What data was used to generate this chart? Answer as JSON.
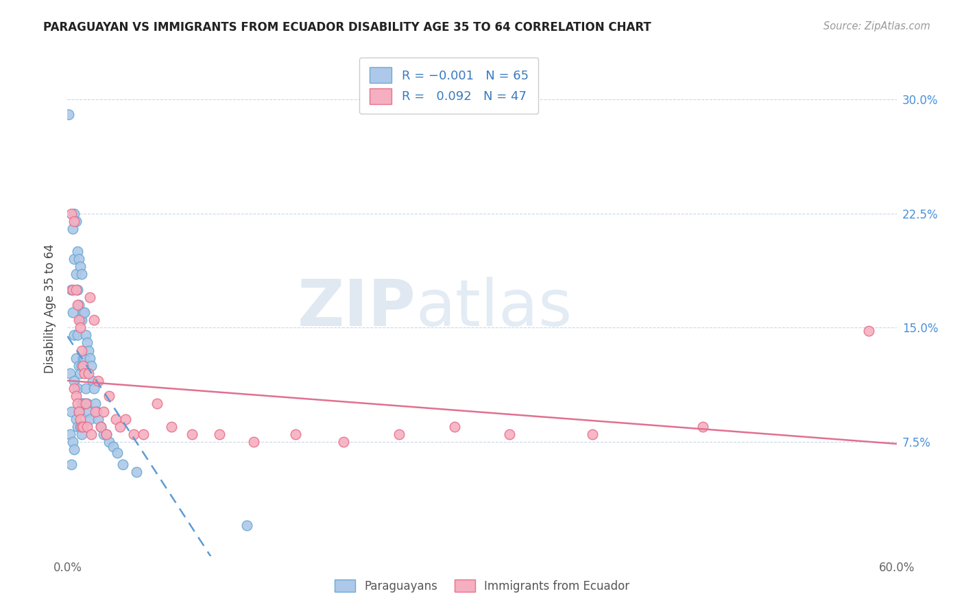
{
  "title": "PARAGUAYAN VS IMMIGRANTS FROM ECUADOR DISABILITY AGE 35 TO 64 CORRELATION CHART",
  "source": "Source: ZipAtlas.com",
  "ylabel": "Disability Age 35 to 64",
  "yticks": [
    "7.5%",
    "15.0%",
    "22.5%",
    "30.0%"
  ],
  "ytick_vals": [
    0.075,
    0.15,
    0.225,
    0.3
  ],
  "blue_r": "-0.001",
  "blue_n": "65",
  "pink_r": "0.092",
  "pink_n": "47",
  "blue_color": "#adc8e8",
  "pink_color": "#f5afc0",
  "blue_edge_color": "#6aaad4",
  "pink_edge_color": "#e8708a",
  "blue_line_color": "#5b9bd5",
  "pink_line_color": "#e07090",
  "legend_label_blue": "Paraguayans",
  "legend_label_pink": "Immigrants from Ecuador",
  "watermark_zip": "ZIP",
  "watermark_atlas": "atlas",
  "blue_x": [
    0.001,
    0.002,
    0.002,
    0.003,
    0.003,
    0.003,
    0.004,
    0.004,
    0.004,
    0.005,
    0.005,
    0.005,
    0.005,
    0.005,
    0.006,
    0.006,
    0.006,
    0.006,
    0.007,
    0.007,
    0.007,
    0.007,
    0.007,
    0.008,
    0.008,
    0.008,
    0.008,
    0.009,
    0.009,
    0.009,
    0.009,
    0.01,
    0.01,
    0.01,
    0.01,
    0.01,
    0.011,
    0.011,
    0.011,
    0.012,
    0.012,
    0.012,
    0.013,
    0.013,
    0.014,
    0.014,
    0.015,
    0.015,
    0.016,
    0.016,
    0.017,
    0.018,
    0.019,
    0.02,
    0.021,
    0.022,
    0.024,
    0.026,
    0.028,
    0.03,
    0.033,
    0.036,
    0.04,
    0.05,
    0.13
  ],
  "blue_y": [
    0.29,
    0.12,
    0.08,
    0.175,
    0.095,
    0.06,
    0.215,
    0.16,
    0.075,
    0.225,
    0.195,
    0.145,
    0.115,
    0.07,
    0.22,
    0.185,
    0.13,
    0.09,
    0.2,
    0.175,
    0.145,
    0.11,
    0.085,
    0.195,
    0.165,
    0.125,
    0.095,
    0.19,
    0.155,
    0.12,
    0.085,
    0.185,
    0.155,
    0.125,
    0.1,
    0.08,
    0.16,
    0.13,
    0.1,
    0.16,
    0.13,
    0.1,
    0.145,
    0.11,
    0.14,
    0.1,
    0.135,
    0.095,
    0.13,
    0.09,
    0.125,
    0.115,
    0.11,
    0.1,
    0.095,
    0.09,
    0.085,
    0.08,
    0.08,
    0.075,
    0.072,
    0.068,
    0.06,
    0.055,
    0.02
  ],
  "pink_x": [
    0.003,
    0.004,
    0.005,
    0.005,
    0.006,
    0.006,
    0.007,
    0.007,
    0.008,
    0.008,
    0.009,
    0.009,
    0.01,
    0.01,
    0.011,
    0.011,
    0.012,
    0.013,
    0.014,
    0.015,
    0.016,
    0.017,
    0.019,
    0.02,
    0.022,
    0.024,
    0.026,
    0.028,
    0.03,
    0.035,
    0.038,
    0.042,
    0.048,
    0.055,
    0.065,
    0.075,
    0.09,
    0.11,
    0.135,
    0.165,
    0.2,
    0.24,
    0.28,
    0.32,
    0.38,
    0.46,
    0.58
  ],
  "pink_y": [
    0.225,
    0.175,
    0.22,
    0.11,
    0.175,
    0.105,
    0.165,
    0.1,
    0.155,
    0.095,
    0.15,
    0.09,
    0.135,
    0.085,
    0.125,
    0.085,
    0.12,
    0.1,
    0.085,
    0.12,
    0.17,
    0.08,
    0.155,
    0.095,
    0.115,
    0.085,
    0.095,
    0.08,
    0.105,
    0.09,
    0.085,
    0.09,
    0.08,
    0.08,
    0.1,
    0.085,
    0.08,
    0.08,
    0.075,
    0.08,
    0.075,
    0.08,
    0.085,
    0.08,
    0.08,
    0.085,
    0.148
  ]
}
